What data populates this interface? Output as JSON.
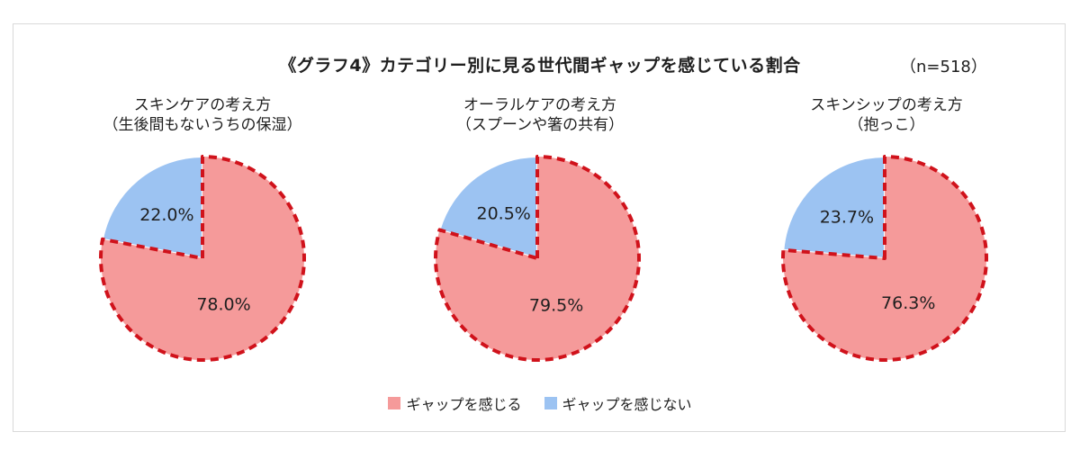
{
  "title": "《グラフ4》カテゴリー別に見る世代間ギャップを感じている割合",
  "n_label": "（n=518）",
  "colors": {
    "gap": "#f59a9a",
    "nogap": "#9cc3f2",
    "border": "#d0121b"
  },
  "chart_data": [
    {
      "type": "pie",
      "title_lines": [
        "スキンケアの考え方",
        "（生後間もないうちの保湿）"
      ],
      "slices": [
        {
          "label": "ギャップを感じる",
          "value": 78.0,
          "display": "78.0%"
        },
        {
          "label": "ギャップを感じない",
          "value": 22.0,
          "display": "22.0%"
        }
      ]
    },
    {
      "type": "pie",
      "title_lines": [
        "オーラルケアの考え方",
        "（スプーンや箸の共有）"
      ],
      "slices": [
        {
          "label": "ギャップを感じる",
          "value": 79.5,
          "display": "79.5%"
        },
        {
          "label": "ギャップを感じない",
          "value": 20.5,
          "display": "20.5%"
        }
      ]
    },
    {
      "type": "pie",
      "title_lines": [
        "スキンシップの考え方",
        "（抱っこ）"
      ],
      "slices": [
        {
          "label": "ギャップを感じる",
          "value": 76.3,
          "display": "76.3%"
        },
        {
          "label": "ギャップを感じない",
          "value": 23.7,
          "display": "23.7%"
        }
      ]
    }
  ],
  "legend": [
    {
      "label": "ギャップを感じる",
      "color": "#f59a9a"
    },
    {
      "label": "ギャップを感じない",
      "color": "#9cc3f2"
    }
  ]
}
